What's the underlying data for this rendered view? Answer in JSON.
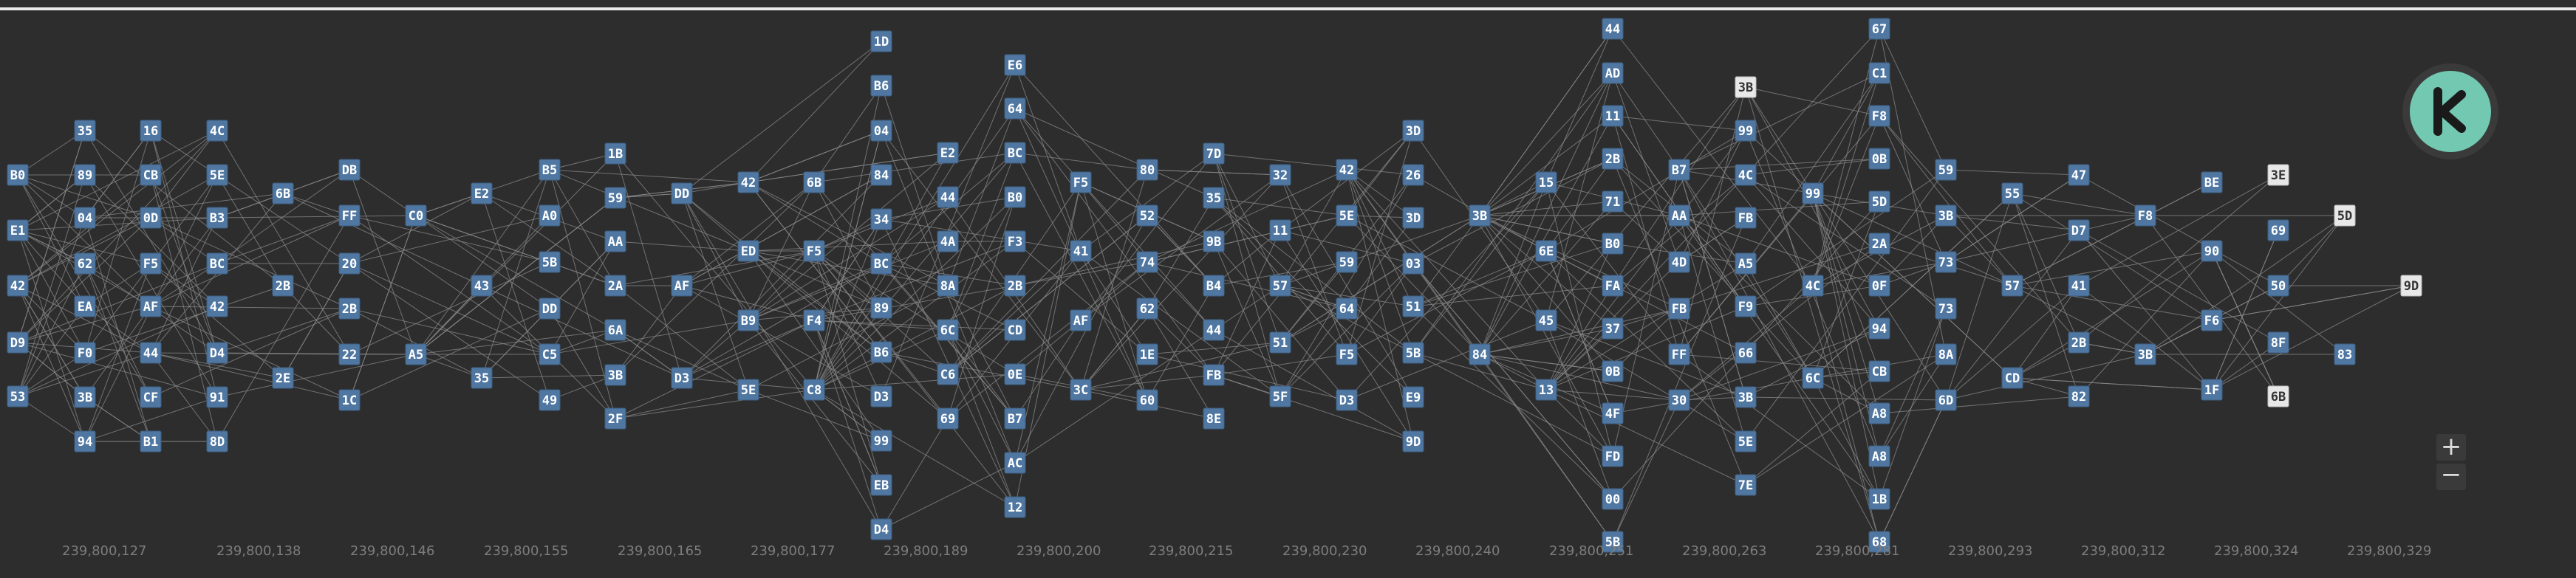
{
  "controls": {
    "zoom_in": "+",
    "zoom_out": "−"
  },
  "colors": {
    "background": "#2d2d2d",
    "node": "#4f77a1",
    "node_highlight": "#e8e8e8",
    "edge": "#8a8a8a",
    "logo": "#73c8b1"
  },
  "icons": {
    "logo": "kaspa-logo-icon",
    "zoom_in": "plus-icon",
    "zoom_out": "minus-icon"
  },
  "axis": {
    "ticks": [
      "239,800,127",
      "239,800,138",
      "239,800,146",
      "239,800,155",
      "239,800,165",
      "239,800,177",
      "239,800,189",
      "239,800,200",
      "239,800,215",
      "239,800,230",
      "239,800,240",
      "239,800,251",
      "239,800,263",
      "239,800,281",
      "239,800,293",
      "239,800,312",
      "239,800,324",
      "239,800,329"
    ]
  },
  "columns": [
    {
      "blocks": [
        "B0",
        "E1",
        "42",
        "D9",
        "53"
      ]
    },
    {
      "blocks": [
        "35",
        "89",
        "04",
        "62",
        "EA",
        "F0",
        "3B",
        "94"
      ]
    },
    {
      "blocks": [
        "16",
        "CB",
        "0D",
        "F5",
        "AF",
        "44",
        "CF",
        "B1"
      ]
    },
    {
      "blocks": [
        "4C",
        "5E",
        "B3",
        "BC",
        "42",
        "D4",
        "91",
        "8D"
      ]
    },
    {
      "blocks": [
        "6B",
        "2B",
        "2E"
      ]
    },
    {
      "blocks": [
        "DB",
        "FF",
        "20",
        "2B",
        "22",
        "1C"
      ]
    },
    {
      "blocks": [
        "C0",
        "A5"
      ]
    },
    {
      "blocks": [
        "E2",
        "43",
        "35"
      ]
    },
    {
      "blocks": [
        "B5",
        "A0",
        "5B",
        "DD",
        "C5",
        "49"
      ]
    },
    {
      "blocks": [
        "1B",
        "59",
        "AA",
        "2A",
        "6A",
        "3B",
        "2F"
      ]
    },
    {
      "blocks": [
        "DD",
        "AF",
        "D3"
      ]
    },
    {
      "blocks": [
        "42",
        "ED",
        "B9",
        "5E"
      ]
    },
    {
      "blocks": [
        "6B",
        "F5",
        "F4",
        "C8"
      ]
    },
    {
      "blocks": [
        "1D",
        "B6",
        "04",
        "84",
        "34",
        "BC",
        "89",
        "B6",
        "D3",
        "99",
        "EB",
        "D4"
      ]
    },
    {
      "blocks": [
        "E2",
        "44",
        "4A",
        "8A",
        "6C",
        "C6",
        "69"
      ]
    },
    {
      "blocks": [
        "E6",
        "64",
        "BC",
        "B0",
        "F3",
        "2B",
        "CD",
        "0E",
        "B7",
        "AC",
        "12"
      ]
    },
    {
      "blocks": [
        "F5",
        "41",
        "AF",
        "3C"
      ]
    },
    {
      "blocks": [
        "80",
        "52",
        "74",
        "62",
        "1E",
        "60"
      ]
    },
    {
      "blocks": [
        "7D",
        "35",
        "9B",
        "B4",
        "44",
        "FB",
        "8E"
      ]
    },
    {
      "blocks": [
        "32",
        "11",
        "57",
        "51",
        "5F"
      ]
    },
    {
      "blocks": [
        "42",
        "5E",
        "59",
        "64",
        "F5",
        "D3"
      ]
    },
    {
      "blocks": [
        "3D",
        "26",
        "3D",
        "03",
        "51",
        "5B",
        "E9",
        "9D"
      ]
    },
    {
      "blocks": [
        "3B",
        "84"
      ]
    },
    {
      "blocks": [
        "15",
        "6E",
        "45",
        "13"
      ]
    },
    {
      "blocks": [
        "44",
        "AD",
        "11",
        "2B",
        "71",
        "B0",
        "FA",
        "37",
        "0B",
        "4F",
        "FD",
        "00",
        "5B"
      ]
    },
    {
      "blocks": [
        "B7",
        "AA",
        "4D",
        "FB",
        "FF",
        "30"
      ]
    },
    {
      "blocks": [
        "3B",
        "99",
        "4C",
        "FB",
        "A5",
        "F9",
        "66",
        "3B",
        "5E",
        "7E"
      ]
    },
    {
      "blocks": [
        "99",
        "4C",
        "6C"
      ]
    },
    {
      "blocks": [
        "67",
        "C1",
        "F8",
        "0B",
        "5D",
        "2A",
        "0F",
        "94",
        "CB",
        "A8",
        "A8",
        "1B",
        "68"
      ]
    },
    {
      "blocks": [
        "59",
        "3B",
        "73",
        "73",
        "8A",
        "6D"
      ]
    },
    {
      "blocks": [
        "55",
        "57",
        "CD"
      ]
    },
    {
      "blocks": [
        "47",
        "D7",
        "41",
        "2B",
        "82"
      ]
    },
    {
      "blocks": [
        "F8",
        "3B"
      ]
    },
    {
      "blocks": [
        "BE",
        "90",
        "F6",
        "1F"
      ]
    },
    {
      "blocks": [
        "3E",
        "69",
        "50",
        "8F",
        "6B"
      ]
    },
    {
      "blocks": [
        "5D",
        "83"
      ]
    },
    {
      "blocks": [
        "9D"
      ]
    }
  ]
}
